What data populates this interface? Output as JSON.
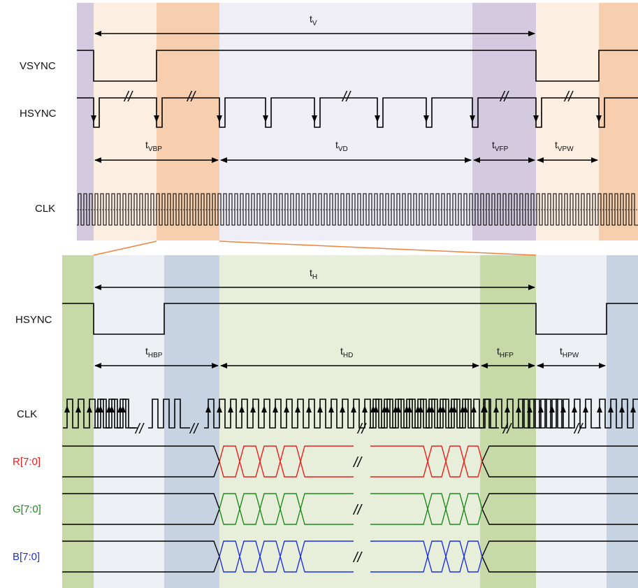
{
  "top": {
    "labels": {
      "vsync": "VSYNC",
      "hsync": "HSYNC",
      "clk": "CLK"
    },
    "timings": {
      "tv": {
        "base": "t",
        "sub": "V"
      },
      "tvbp": {
        "base": "t",
        "sub": "VBP"
      },
      "tvd": {
        "base": "t",
        "sub": "VD"
      },
      "tvfp": {
        "base": "t",
        "sub": "VFP"
      },
      "tvpw": {
        "base": "t",
        "sub": "VPW"
      }
    }
  },
  "bottom": {
    "labels": {
      "hsync": "HSYNC",
      "clk": "CLK",
      "r": "R[7:0]",
      "g": "G[7:0]",
      "b": "B[7:0]"
    },
    "timings": {
      "th": {
        "base": "t",
        "sub": "H"
      },
      "thbp": {
        "base": "t",
        "sub": "HBP"
      },
      "thd": {
        "base": "t",
        "sub": "HD"
      },
      "thfp": {
        "base": "t",
        "sub": "HFP"
      },
      "thpw": {
        "base": "t",
        "sub": "HPW"
      }
    }
  },
  "break_mark": "//",
  "colors": {
    "sync_purple": "#d3cae0",
    "peach_light": "#fdeee2",
    "orange": "#f7cfae",
    "lavender_light": "#efeef7",
    "green": "#c7d9a7",
    "green_light": "#e7efda",
    "blue_light": "#ecf0f5",
    "blue": "#c7d3e2",
    "zoom_line": "#f0843c",
    "red": "#ee1c1c",
    "green_signal": "#1d8a1d",
    "blue_signal": "#1c2fe6"
  }
}
